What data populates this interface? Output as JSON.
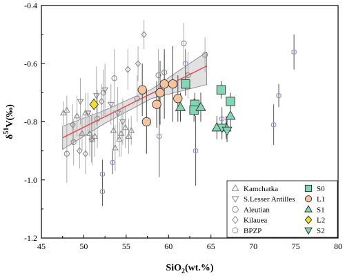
{
  "chart_data": {
    "type": "scatter",
    "xlabel": "SiO2(wt.%)",
    "ylabel": "δ51V(‰)",
    "xlim": [
      45,
      80
    ],
    "ylim": [
      -1.2,
      -0.4
    ],
    "x_ticks": [
      45,
      50,
      55,
      60,
      65,
      70,
      75,
      80
    ],
    "y_ticks": [
      -1.2,
      -1.0,
      -0.8,
      -0.6,
      -0.4
    ],
    "x_tick_labels": [
      "45",
      "50",
      "55",
      "60",
      "65",
      "70",
      "75",
      "80"
    ],
    "y_tick_labels": [
      "-1.2",
      "-1.0",
      "-0.8",
      "-0.6",
      "-0.4"
    ],
    "legend_position": "bottom-right",
    "grid": false,
    "regression": {
      "x": [
        47.5,
        64.5
      ],
      "y": [
        -0.855,
        -0.608
      ],
      "confidence_lower": [
        -0.895,
        -0.805,
        -0.72,
        -0.672
      ],
      "confidence_upper": [
        -0.815,
        -0.76,
        -0.688,
        -0.56
      ],
      "confidence_x": [
        47.5,
        52.5,
        58.0,
        64.5
      ],
      "line_color": "#e8454a",
      "band_color": "#c8c8c8"
    },
    "series": [
      {
        "name": "Kamchatka",
        "marker": "triangle-up",
        "filled": false,
        "color": "#8a8a8a",
        "error_color": "#aaaaaa",
        "points": [
          {
            "x": 47.6,
            "y": -0.77,
            "err": 0.04
          },
          {
            "x": 48.0,
            "y": -0.76,
            "err": 0.05
          },
          {
            "x": 49.2,
            "y": -0.78,
            "err": 0.07
          },
          {
            "x": 49.8,
            "y": -0.84,
            "err": 0.06
          },
          {
            "x": 50.2,
            "y": -0.77,
            "err": 0.07
          },
          {
            "x": 50.7,
            "y": -0.84,
            "err": 0.08
          },
          {
            "x": 51.0,
            "y": -0.86,
            "err": 0.09
          },
          {
            "x": 51.3,
            "y": -0.85,
            "err": 0.07
          },
          {
            "x": 53.5,
            "y": -0.83,
            "err": 0.07
          },
          {
            "x": 53.7,
            "y": -0.89,
            "err": 0.08
          },
          {
            "x": 54.2,
            "y": -0.86,
            "err": 0.06
          },
          {
            "x": 54.4,
            "y": -0.84,
            "err": 0.08
          },
          {
            "x": 54.9,
            "y": -0.82,
            "err": 0.07
          },
          {
            "x": 55.3,
            "y": -0.85,
            "err": 0.06
          },
          {
            "x": 55.6,
            "y": -0.83,
            "err": 0.05
          }
        ]
      },
      {
        "name": "S.Lesser Antilles",
        "marker": "triangle-down",
        "filled": false,
        "color": "#8a8a8a",
        "error_color": "#aaaaaa",
        "points": [
          {
            "x": 49.6,
            "y": -0.73,
            "err": 0.08
          },
          {
            "x": 50.5,
            "y": -0.77,
            "err": 0.07
          },
          {
            "x": 51.5,
            "y": -0.71,
            "err": 0.1
          },
          {
            "x": 52.5,
            "y": -0.69,
            "err": 0.09
          },
          {
            "x": 53.2,
            "y": -0.74,
            "err": 0.07
          },
          {
            "x": 54.0,
            "y": -0.77,
            "err": 0.09
          },
          {
            "x": 54.6,
            "y": -0.8,
            "err": 0.08
          }
        ]
      },
      {
        "name": "Aleutian",
        "marker": "circle",
        "filled": false,
        "color": "#8a8a8a",
        "error_color": "#aaaaaa",
        "points": [
          {
            "x": 48.0,
            "y": -0.91,
            "err": 0.1
          },
          {
            "x": 48.8,
            "y": -0.87,
            "err": 0.08
          },
          {
            "x": 51.6,
            "y": -0.79,
            "err": 0.1
          },
          {
            "x": 52.3,
            "y": -0.7,
            "err": 0.08
          },
          {
            "x": 53.6,
            "y": -0.65,
            "err": 0.1
          },
          {
            "x": 56.3,
            "y": -0.72,
            "err": 0.08
          },
          {
            "x": 58.8,
            "y": -0.64,
            "err": 0.09
          },
          {
            "x": 59.5,
            "y": -0.63,
            "err": 0.07
          },
          {
            "x": 61.8,
            "y": -0.53,
            "err": 0.07
          },
          {
            "x": 62.3,
            "y": -0.64,
            "err": 0.08
          },
          {
            "x": 64.3,
            "y": -0.57,
            "err": 0.06
          }
        ]
      },
      {
        "name": "Kilauea",
        "marker": "diamond",
        "filled": false,
        "color": "#8a8a8a",
        "error_color": "#aaaaaa",
        "points": [
          {
            "x": 48.7,
            "y": -0.81,
            "err": 0.07
          },
          {
            "x": 49.5,
            "y": -0.9,
            "err": 0.06
          },
          {
            "x": 50.2,
            "y": -0.91,
            "err": 0.07
          },
          {
            "x": 50.9,
            "y": -0.86,
            "err": 0.08
          },
          {
            "x": 52.1,
            "y": -0.73,
            "err": 0.06
          },
          {
            "x": 55.2,
            "y": -0.62,
            "err": 0.07
          },
          {
            "x": 56.4,
            "y": -0.6,
            "err": 0.06
          },
          {
            "x": 57.1,
            "y": -0.5,
            "err": 0.05
          }
        ]
      },
      {
        "name": "BPZP",
        "marker": "hexagon",
        "filled": false,
        "color": "#8f8fe0",
        "error_color": "#555555",
        "points": [
          {
            "x": 52.2,
            "y": -0.98,
            "err": 0.05
          },
          {
            "x": 52.2,
            "y": -1.04,
            "err": 0.05
          },
          {
            "x": 53.4,
            "y": -0.94,
            "err": 0.04
          },
          {
            "x": 58.9,
            "y": -0.85,
            "err": 0.14
          },
          {
            "x": 62.0,
            "y": -0.6,
            "err": 0.05
          },
          {
            "x": 63.2,
            "y": -0.9,
            "err": 0.12
          },
          {
            "x": 66.3,
            "y": -0.79,
            "err": 0.04
          },
          {
            "x": 72.4,
            "y": -0.81,
            "err": 0.07
          },
          {
            "x": 73.0,
            "y": -0.71,
            "err": 0.04
          },
          {
            "x": 74.8,
            "y": -0.56,
            "err": 0.06
          }
        ]
      },
      {
        "name": "S0",
        "marker": "square",
        "filled": true,
        "color": "#7fd8b4",
        "error_color": "#444444",
        "points": [
          {
            "x": 62.0,
            "y": -0.67,
            "err": 0.04
          },
          {
            "x": 63.1,
            "y": -0.74,
            "err": 0.04
          },
          {
            "x": 63.0,
            "y": -0.76,
            "err": 0.04
          },
          {
            "x": 66.2,
            "y": -0.69,
            "err": 0.03
          },
          {
            "x": 67.3,
            "y": -0.73,
            "err": 0.03
          }
        ]
      },
      {
        "name": "L1",
        "marker": "circle",
        "filled": true,
        "color": "#f7c49c",
        "error_color": "#444444",
        "points": [
          {
            "x": 56.9,
            "y": -0.69,
            "err": 0.09
          },
          {
            "x": 57.4,
            "y": -0.8,
            "err": 0.11
          },
          {
            "x": 58.6,
            "y": -0.74,
            "err": 0.08
          },
          {
            "x": 59.0,
            "y": -0.7,
            "err": 0.11
          },
          {
            "x": 59.5,
            "y": -0.67,
            "err": 0.12
          },
          {
            "x": 60.5,
            "y": -0.67,
            "err": 0.13
          },
          {
            "x": 61.1,
            "y": -0.72,
            "err": 0.08
          }
        ]
      },
      {
        "name": "S1",
        "marker": "triangle-up",
        "filled": true,
        "color": "#7fd8b4",
        "error_color": "#444444",
        "points": [
          {
            "x": 61.4,
            "y": -0.75,
            "err": 0.05
          },
          {
            "x": 63.8,
            "y": -0.75,
            "err": 0.05
          },
          {
            "x": 65.7,
            "y": -0.82,
            "err": 0.04
          },
          {
            "x": 66.8,
            "y": -0.82,
            "err": 0.04
          },
          {
            "x": 67.3,
            "y": -0.78,
            "err": 0.04
          }
        ]
      },
      {
        "name": "L2",
        "marker": "diamond",
        "filled": true,
        "color": "#f3e21c",
        "error_color": "#444444",
        "points": [
          {
            "x": 51.2,
            "y": -0.74,
            "err": 0.02
          }
        ]
      },
      {
        "name": "S2",
        "marker": "triangle-down",
        "filled": true,
        "color": "#7fd8b4",
        "error_color": "#444444",
        "points": [
          {
            "x": 66.3,
            "y": -0.82,
            "err": 0.04
          },
          {
            "x": 66.9,
            "y": -0.83,
            "err": 0.04
          }
        ]
      }
    ],
    "legend_columns": [
      [
        "Kamchatka",
        "S.Lesser Antilles",
        "Aleutian",
        "Kilauea",
        "BPZP"
      ],
      [
        "S0",
        "L1",
        "S1",
        "L2",
        "S2"
      ]
    ]
  }
}
